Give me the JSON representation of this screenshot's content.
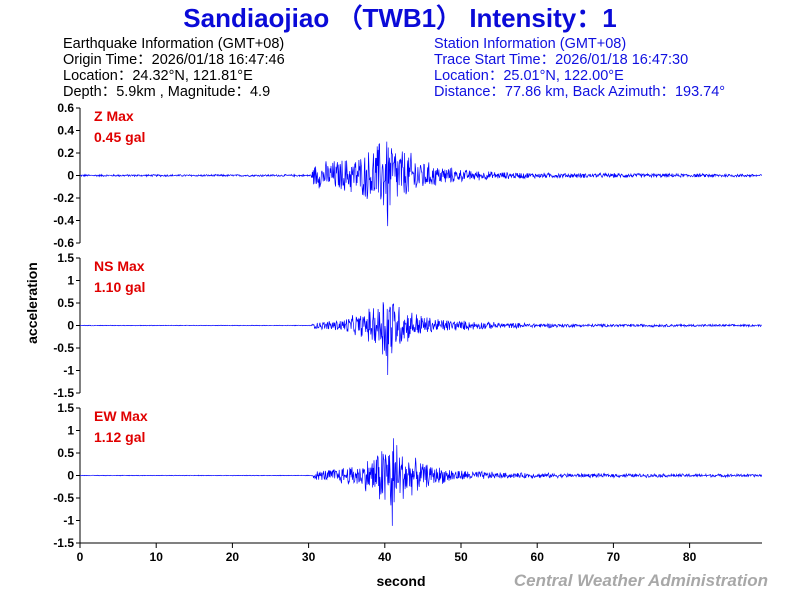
{
  "title": "Sandiaojiao （TWB1） Intensity：1",
  "earthquake_info": {
    "heading": "Earthquake Information  (GMT+08)",
    "origin_time": "Origin Time：2026/01/18 16:47:46",
    "location": "Location：24.32°N, 121.81°E",
    "depth_magnitude": "Depth：5.9km , Magnitude：4.9"
  },
  "station_info": {
    "heading": "Station Information  (GMT+08)",
    "trace_start": "Trace Start Time：2026/01/18 16:47:30",
    "location": "Location：25.01°N, 122.00°E",
    "distance": "Distance：77.86 km, Back Azimuth：193.74°"
  },
  "credit": "Central Weather Administration",
  "colors": {
    "title": "#0a0ad8",
    "trace": "#0000ff",
    "max_label": "#e00000",
    "credit": "#a8a8a8"
  },
  "chart_data": {
    "type": "line",
    "xlabel": "second",
    "ylabel": "acceleration",
    "xlim": [
      0,
      89.5
    ],
    "x_ticks": [
      0,
      10,
      20,
      30,
      40,
      50,
      60,
      70,
      80
    ],
    "x_tick_labels": [
      "0",
      "10",
      "20",
      "30",
      "40",
      "50",
      "60",
      "70",
      "80"
    ],
    "grid": false,
    "series": [
      {
        "name": "Z Max",
        "max_label": "0.45 gal",
        "max_abs": 0.45,
        "ylim": [
          -0.6,
          0.6
        ],
        "y_ticks": [
          0.6,
          0.4,
          0.2,
          0,
          -0.2,
          -0.4,
          -0.6
        ],
        "y_tick_labels": [
          "0.6",
          "0.4",
          "0.2",
          "0",
          "-0.2",
          "-0.4",
          "-0.6"
        ],
        "envelope": [
          [
            0,
            0.01
          ],
          [
            30.3,
            0.01
          ],
          [
            30.8,
            0.12
          ],
          [
            34,
            0.16
          ],
          [
            37,
            0.2
          ],
          [
            39.5,
            0.35
          ],
          [
            40.4,
            0.45
          ],
          [
            41.5,
            0.3
          ],
          [
            44,
            0.2
          ],
          [
            46,
            0.12
          ],
          [
            50,
            0.06
          ],
          [
            55,
            0.035
          ],
          [
            62,
            0.025
          ],
          [
            75,
            0.02
          ],
          [
            89.5,
            0.015
          ]
        ]
      },
      {
        "name": "NS Max",
        "max_label": "1.10 gal",
        "max_abs": 1.1,
        "ylim": [
          -1.5,
          1.5
        ],
        "y_ticks": [
          1.5,
          1,
          0.5,
          0,
          -0.5,
          -1,
          -1.5
        ],
        "y_tick_labels": [
          "1.5",
          "1",
          "0.5",
          "0",
          "-0.5",
          "-1",
          "-1.5"
        ],
        "envelope": [
          [
            0,
            0.008
          ],
          [
            30.3,
            0.008
          ],
          [
            30.8,
            0.08
          ],
          [
            34,
            0.15
          ],
          [
            37,
            0.3
          ],
          [
            39,
            0.55
          ],
          [
            40.4,
            1.1
          ],
          [
            41.5,
            0.6
          ],
          [
            43,
            0.4
          ],
          [
            46,
            0.2
          ],
          [
            50,
            0.12
          ],
          [
            56,
            0.07
          ],
          [
            65,
            0.04
          ],
          [
            89.5,
            0.025
          ]
        ]
      },
      {
        "name": "EW Max",
        "max_label": "1.12 gal",
        "max_abs": 1.12,
        "ylim": [
          -1.5,
          1.5
        ],
        "y_ticks": [
          1.5,
          1,
          0.5,
          0,
          -0.5,
          -1,
          -1.5
        ],
        "y_tick_labels": [
          "1.5",
          "1",
          "0.5",
          "0",
          "-0.5",
          "-1",
          "-1.5"
        ],
        "envelope": [
          [
            0,
            0.008
          ],
          [
            30.3,
            0.008
          ],
          [
            30.8,
            0.1
          ],
          [
            34,
            0.2
          ],
          [
            37,
            0.3
          ],
          [
            39,
            0.6
          ],
          [
            41,
            1.12
          ],
          [
            42,
            0.7
          ],
          [
            44,
            0.4
          ],
          [
            46,
            0.25
          ],
          [
            50,
            0.13
          ],
          [
            56,
            0.07
          ],
          [
            65,
            0.05
          ],
          [
            89.5,
            0.035
          ]
        ]
      }
    ]
  }
}
